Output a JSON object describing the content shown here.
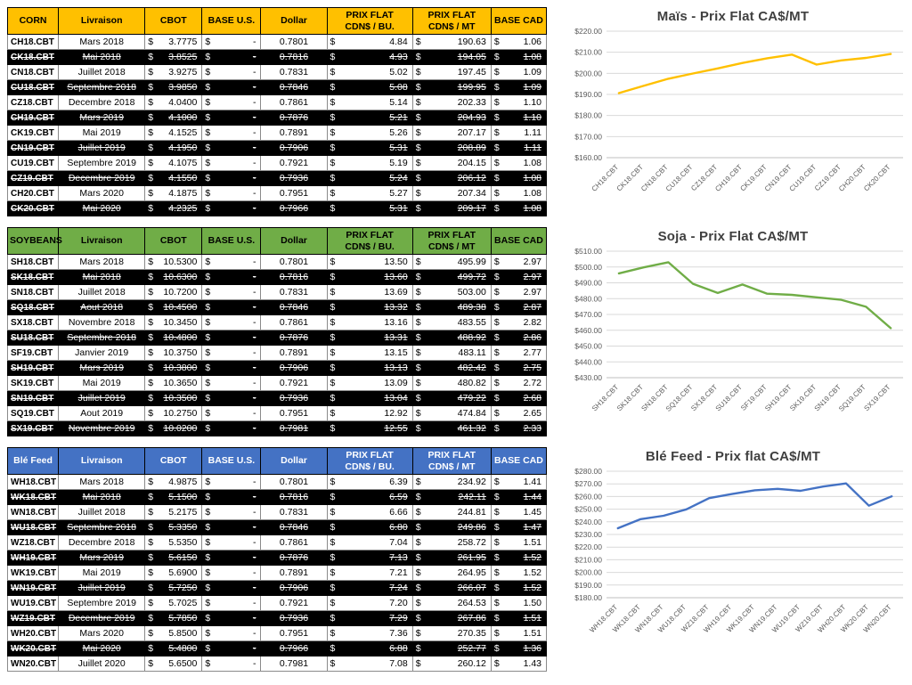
{
  "colors": {
    "corn_accent": "#FFC000",
    "soy_accent": "#70AD47",
    "wheat_accent": "#4472C4",
    "dark_row_bg": "#000000",
    "grid_line": "#D9D9D9",
    "tick_text": "#595959"
  },
  "sections": [
    {
      "name": "corn",
      "header_bg": "#FFC000",
      "header_fg": "#000000",
      "table": {
        "headers": [
          "CORN",
          "Livraison",
          "CBOT",
          "BASE U.S.",
          "Dollar",
          "PRIX FLAT\nCDN$ / BU.",
          "PRIX FLAT\nCDN$ / MT",
          "BASE CAD"
        ],
        "rows": [
          {
            "ticker": "CH18.CBT",
            "livraison": "Mars 2018",
            "cbot": "3.7775",
            "base_us": "-",
            "dollar": "0.7801",
            "flat_bu": "4.84",
            "flat_mt": "190.63",
            "base_cad": "1.06",
            "dark": false
          },
          {
            "ticker": "CK18.CBT",
            "livraison": "Mai 2018",
            "cbot": "3.8525",
            "base_us": "-",
            "dollar": "0.7816",
            "flat_bu": "4.93",
            "flat_mt": "194.05",
            "base_cad": "1.08",
            "dark": true
          },
          {
            "ticker": "CN18.CBT",
            "livraison": "Juillet 2018",
            "cbot": "3.9275",
            "base_us": "-",
            "dollar": "0.7831",
            "flat_bu": "5.02",
            "flat_mt": "197.45",
            "base_cad": "1.09",
            "dark": false
          },
          {
            "ticker": "CU18.CBT",
            "livraison": "Septembre 2018",
            "cbot": "3.9850",
            "base_us": "-",
            "dollar": "0.7846",
            "flat_bu": "5.08",
            "flat_mt": "199.95",
            "base_cad": "1.09",
            "dark": true
          },
          {
            "ticker": "CZ18.CBT",
            "livraison": "Decembre 2018",
            "cbot": "4.0400",
            "base_us": "-",
            "dollar": "0.7861",
            "flat_bu": "5.14",
            "flat_mt": "202.33",
            "base_cad": "1.10",
            "dark": false
          },
          {
            "ticker": "CH19.CBT",
            "livraison": "Mars 2019",
            "cbot": "4.1000",
            "base_us": "-",
            "dollar": "0.7876",
            "flat_bu": "5.21",
            "flat_mt": "204.93",
            "base_cad": "1.10",
            "dark": true
          },
          {
            "ticker": "CK19.CBT",
            "livraison": "Mai 2019",
            "cbot": "4.1525",
            "base_us": "-",
            "dollar": "0.7891",
            "flat_bu": "5.26",
            "flat_mt": "207.17",
            "base_cad": "1.11",
            "dark": false
          },
          {
            "ticker": "CN19.CBT",
            "livraison": "Juillet 2019",
            "cbot": "4.1950",
            "base_us": "-",
            "dollar": "0.7906",
            "flat_bu": "5.31",
            "flat_mt": "208.89",
            "base_cad": "1.11",
            "dark": true
          },
          {
            "ticker": "CU19.CBT",
            "livraison": "Septembre 2019",
            "cbot": "4.1075",
            "base_us": "-",
            "dollar": "0.7921",
            "flat_bu": "5.19",
            "flat_mt": "204.15",
            "base_cad": "1.08",
            "dark": false
          },
          {
            "ticker": "CZ19.CBT",
            "livraison": "Decembre 2019",
            "cbot": "4.1550",
            "base_us": "-",
            "dollar": "0.7936",
            "flat_bu": "5.24",
            "flat_mt": "206.12",
            "base_cad": "1.08",
            "dark": true
          },
          {
            "ticker": "CH20.CBT",
            "livraison": "Mars 2020",
            "cbot": "4.1875",
            "base_us": "-",
            "dollar": "0.7951",
            "flat_bu": "5.27",
            "flat_mt": "207.34",
            "base_cad": "1.08",
            "dark": false
          },
          {
            "ticker": "CK20.CBT",
            "livraison": "Mai 2020",
            "cbot": "4.2325",
            "base_us": "-",
            "dollar": "0.7966",
            "flat_bu": "5.31",
            "flat_mt": "209.17",
            "base_cad": "1.08",
            "dark": true
          }
        ]
      }
    },
    {
      "name": "soybeans",
      "header_bg": "#70AD47",
      "header_fg": "#000000",
      "table": {
        "headers": [
          "SOYBEANS",
          "Livraison",
          "CBOT",
          "BASE U.S.",
          "Dollar",
          "PRIX FLAT\nCDN$ / BU.",
          "PRIX FLAT\nCDN$ / MT",
          "BASE CAD"
        ],
        "rows": [
          {
            "ticker": "SH18.CBT",
            "livraison": "Mars 2018",
            "cbot": "10.5300",
            "base_us": "-",
            "dollar": "0.7801",
            "flat_bu": "13.50",
            "flat_mt": "495.99",
            "base_cad": "2.97",
            "dark": false
          },
          {
            "ticker": "SK18.CBT",
            "livraison": "Mai 2018",
            "cbot": "10.6300",
            "base_us": "-",
            "dollar": "0.7816",
            "flat_bu": "13.60",
            "flat_mt": "499.72",
            "base_cad": "2.97",
            "dark": true
          },
          {
            "ticker": "SN18.CBT",
            "livraison": "Juillet 2018",
            "cbot": "10.7200",
            "base_us": "-",
            "dollar": "0.7831",
            "flat_bu": "13.69",
            "flat_mt": "503.00",
            "base_cad": "2.97",
            "dark": false
          },
          {
            "ticker": "SQ18.CBT",
            "livraison": "Aout 2018",
            "cbot": "10.4500",
            "base_us": "-",
            "dollar": "0.7846",
            "flat_bu": "13.32",
            "flat_mt": "489.38",
            "base_cad": "2.87",
            "dark": true
          },
          {
            "ticker": "SX18.CBT",
            "livraison": "Novembre 2018",
            "cbot": "10.3450",
            "base_us": "-",
            "dollar": "0.7861",
            "flat_bu": "13.16",
            "flat_mt": "483.55",
            "base_cad": "2.82",
            "dark": false
          },
          {
            "ticker": "SU18.CBT",
            "livraison": "Septembre 2018",
            "cbot": "10.4800",
            "base_us": "-",
            "dollar": "0.7876",
            "flat_bu": "13.31",
            "flat_mt": "488.92",
            "base_cad": "2.86",
            "dark": true
          },
          {
            "ticker": "SF19.CBT",
            "livraison": "Janvier 2019",
            "cbot": "10.3750",
            "base_us": "-",
            "dollar": "0.7891",
            "flat_bu": "13.15",
            "flat_mt": "483.11",
            "base_cad": "2.77",
            "dark": false
          },
          {
            "ticker": "SH19.CBT",
            "livraison": "Mars 2019",
            "cbot": "10.3800",
            "base_us": "-",
            "dollar": "0.7906",
            "flat_bu": "13.13",
            "flat_mt": "482.42",
            "base_cad": "2.75",
            "dark": true
          },
          {
            "ticker": "SK19.CBT",
            "livraison": "Mai 2019",
            "cbot": "10.3650",
            "base_us": "-",
            "dollar": "0.7921",
            "flat_bu": "13.09",
            "flat_mt": "480.82",
            "base_cad": "2.72",
            "dark": false
          },
          {
            "ticker": "SN19.CBT",
            "livraison": "Juillet 2019",
            "cbot": "10.3500",
            "base_us": "-",
            "dollar": "0.7936",
            "flat_bu": "13.04",
            "flat_mt": "479.22",
            "base_cad": "2.68",
            "dark": true
          },
          {
            "ticker": "SQ19.CBT",
            "livraison": "Aout 2019",
            "cbot": "10.2750",
            "base_us": "-",
            "dollar": "0.7951",
            "flat_bu": "12.92",
            "flat_mt": "474.84",
            "base_cad": "2.65",
            "dark": false
          },
          {
            "ticker": "SX19.CBT",
            "livraison": "Novembre 2019",
            "cbot": "10.0200",
            "base_us": "-",
            "dollar": "0.7981",
            "flat_bu": "12.55",
            "flat_mt": "461.32",
            "base_cad": "2.33",
            "dark": true
          }
        ]
      }
    },
    {
      "name": "ble-feed",
      "header_bg": "#4472C4",
      "header_fg": "#FFFFFF",
      "table": {
        "headers": [
          "Blé Feed",
          "Livraison",
          "CBOT",
          "BASE U.S.",
          "Dollar",
          "PRIX FLAT\nCDN$ / BU.",
          "PRIX FLAT\nCDN$ / MT",
          "BASE CAD"
        ],
        "rows": [
          {
            "ticker": "WH18.CBT",
            "livraison": "Mars 2018",
            "cbot": "4.9875",
            "base_us": "-",
            "dollar": "0.7801",
            "flat_bu": "6.39",
            "flat_mt": "234.92",
            "base_cad": "1.41",
            "dark": false
          },
          {
            "ticker": "WK18.CBT",
            "livraison": "Mai 2018",
            "cbot": "5.1500",
            "base_us": "-",
            "dollar": "0.7816",
            "flat_bu": "6.59",
            "flat_mt": "242.11",
            "base_cad": "1.44",
            "dark": true
          },
          {
            "ticker": "WN18.CBT",
            "livraison": "Juillet 2018",
            "cbot": "5.2175",
            "base_us": "-",
            "dollar": "0.7831",
            "flat_bu": "6.66",
            "flat_mt": "244.81",
            "base_cad": "1.45",
            "dark": false
          },
          {
            "ticker": "WU18.CBT",
            "livraison": "Septembre 2018",
            "cbot": "5.3350",
            "base_us": "-",
            "dollar": "0.7846",
            "flat_bu": "6.80",
            "flat_mt": "249.86",
            "base_cad": "1.47",
            "dark": true
          },
          {
            "ticker": "WZ18.CBT",
            "livraison": "Decembre 2018",
            "cbot": "5.5350",
            "base_us": "-",
            "dollar": "0.7861",
            "flat_bu": "7.04",
            "flat_mt": "258.72",
            "base_cad": "1.51",
            "dark": false
          },
          {
            "ticker": "WH19.CBT",
            "livraison": "Mars 2019",
            "cbot": "5.6150",
            "base_us": "-",
            "dollar": "0.7876",
            "flat_bu": "7.13",
            "flat_mt": "261.95",
            "base_cad": "1.52",
            "dark": true
          },
          {
            "ticker": "WK19.CBT",
            "livraison": "Mai 2019",
            "cbot": "5.6900",
            "base_us": "-",
            "dollar": "0.7891",
            "flat_bu": "7.21",
            "flat_mt": "264.95",
            "base_cad": "1.52",
            "dark": false
          },
          {
            "ticker": "WN19.CBT",
            "livraison": "Juillet 2019",
            "cbot": "5.7250",
            "base_us": "-",
            "dollar": "0.7906",
            "flat_bu": "7.24",
            "flat_mt": "266.07",
            "base_cad": "1.52",
            "dark": true
          },
          {
            "ticker": "WU19.CBT",
            "livraison": "Septembre 2019",
            "cbot": "5.7025",
            "base_us": "-",
            "dollar": "0.7921",
            "flat_bu": "7.20",
            "flat_mt": "264.53",
            "base_cad": "1.50",
            "dark": false
          },
          {
            "ticker": "WZ19.CBT",
            "livraison": "Decembre 2019",
            "cbot": "5.7850",
            "base_us": "-",
            "dollar": "0.7936",
            "flat_bu": "7.29",
            "flat_mt": "267.86",
            "base_cad": "1.51",
            "dark": true
          },
          {
            "ticker": "WH20.CBT",
            "livraison": "Mars 2020",
            "cbot": "5.8500",
            "base_us": "-",
            "dollar": "0.7951",
            "flat_bu": "7.36",
            "flat_mt": "270.35",
            "base_cad": "1.51",
            "dark": false
          },
          {
            "ticker": "WK20.CBT",
            "livraison": "Mai 2020",
            "cbot": "5.4800",
            "base_us": "-",
            "dollar": "0.7966",
            "flat_bu": "6.88",
            "flat_mt": "252.77",
            "base_cad": "1.36",
            "dark": true
          },
          {
            "ticker": "WN20.CBT",
            "livraison": "Juillet 2020",
            "cbot": "5.6500",
            "base_us": "-",
            "dollar": "0.7981",
            "flat_bu": "7.08",
            "flat_mt": "260.12",
            "base_cad": "1.43",
            "dark": false
          }
        ]
      }
    }
  ],
  "chart_data": [
    {
      "type": "line",
      "title": "Maïs - Prix Flat CA$/MT",
      "categories": [
        "CH18.CBT",
        "CK18.CBT",
        "CN18.CBT",
        "CU18.CBT",
        "CZ18.CBT",
        "CH19.CBT",
        "CK19.CBT",
        "CN19.CBT",
        "CU19.CBT",
        "CZ19.CBT",
        "CH20.CBT",
        "CK20.CBT"
      ],
      "values": [
        190.63,
        194.05,
        197.45,
        199.95,
        202.33,
        204.93,
        207.17,
        208.89,
        204.15,
        206.12,
        207.34,
        209.17
      ],
      "color": "#FFC000",
      "xlabel": "",
      "ylabel": "",
      "ylim": [
        160,
        220
      ],
      "ytick_step": 10,
      "ytick_prefix": "$",
      "grid": true,
      "legend": "none"
    },
    {
      "type": "line",
      "title": "Soja - Prix Flat CA$/MT",
      "categories": [
        "SH18.CBT",
        "SK18.CBT",
        "SN18.CBT",
        "SQ18.CBT",
        "SX18.CBT",
        "SU18.CBT",
        "SF19.CBT",
        "SH19.CBT",
        "SK19.CBT",
        "SN19.CBT",
        "SQ19.CBT",
        "SX19.CBT"
      ],
      "values": [
        495.99,
        499.72,
        503.0,
        489.38,
        483.55,
        488.92,
        483.11,
        482.42,
        480.82,
        479.22,
        474.84,
        461.32
      ],
      "color": "#70AD47",
      "xlabel": "",
      "ylabel": "",
      "ylim": [
        430,
        510
      ],
      "ytick_step": 10,
      "ytick_prefix": "$",
      "grid": true,
      "legend": "none"
    },
    {
      "type": "line",
      "title": "Blé Feed - Prix flat CA$/MT",
      "categories": [
        "WH18.CBT",
        "WK18.CBT",
        "WN18.CBT",
        "WU18.CBT",
        "WZ18.CBT",
        "WH19.CBT",
        "WK19.CBT",
        "WN19.CBT",
        "WU19.CBT",
        "WZ19.CBT",
        "WH20.CBT",
        "WK20.CBT",
        "WN20.CBT"
      ],
      "values": [
        234.92,
        242.11,
        244.81,
        249.86,
        258.72,
        261.95,
        264.95,
        266.07,
        264.53,
        267.86,
        270.35,
        252.77,
        260.12
      ],
      "color": "#4472C4",
      "xlabel": "",
      "ylabel": "",
      "ylim": [
        180,
        280
      ],
      "ytick_step": 10,
      "ytick_prefix": "$",
      "grid": true,
      "legend": "none"
    }
  ]
}
